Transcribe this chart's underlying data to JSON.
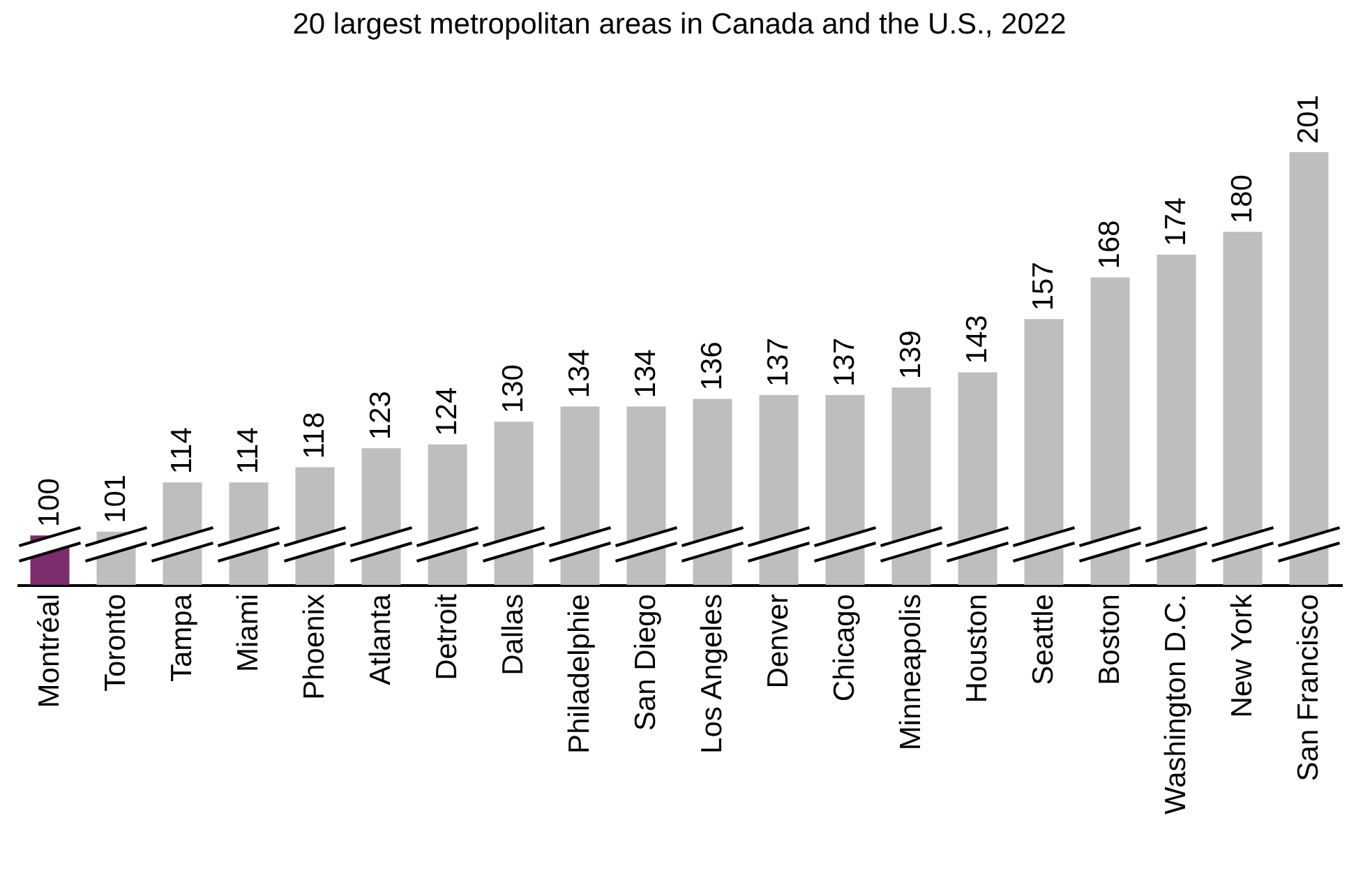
{
  "chart_data": {
    "type": "bar",
    "title": "20 largest metropolitan areas in Canada and the U.S., 2022",
    "categories": [
      "Montréal",
      "Toronto",
      "Tampa",
      "Miami",
      "Phoenix",
      "Atlanta",
      "Detroit",
      "Dallas",
      "Philadelphie",
      "San Diego",
      "Los Angeles",
      "Denver",
      "Chicago",
      "Minneapolis",
      "Houston",
      "Seattle",
      "Boston",
      "Washington D.C.",
      "New York",
      "San Francisco"
    ],
    "values": [
      100,
      101,
      114,
      114,
      118,
      123,
      124,
      130,
      134,
      134,
      136,
      137,
      137,
      139,
      143,
      157,
      168,
      174,
      180,
      201
    ],
    "colors": [
      "#7b2d6e",
      "#bebebe",
      "#bebebe",
      "#bebebe",
      "#bebebe",
      "#bebebe",
      "#bebebe",
      "#bebebe",
      "#bebebe",
      "#bebebe",
      "#bebebe",
      "#bebebe",
      "#bebebe",
      "#bebebe",
      "#bebebe",
      "#bebebe",
      "#bebebe",
      "#bebebe",
      "#bebebe",
      "#bebebe"
    ],
    "ylim": [
      87,
      201
    ],
    "data_labels": true
  }
}
